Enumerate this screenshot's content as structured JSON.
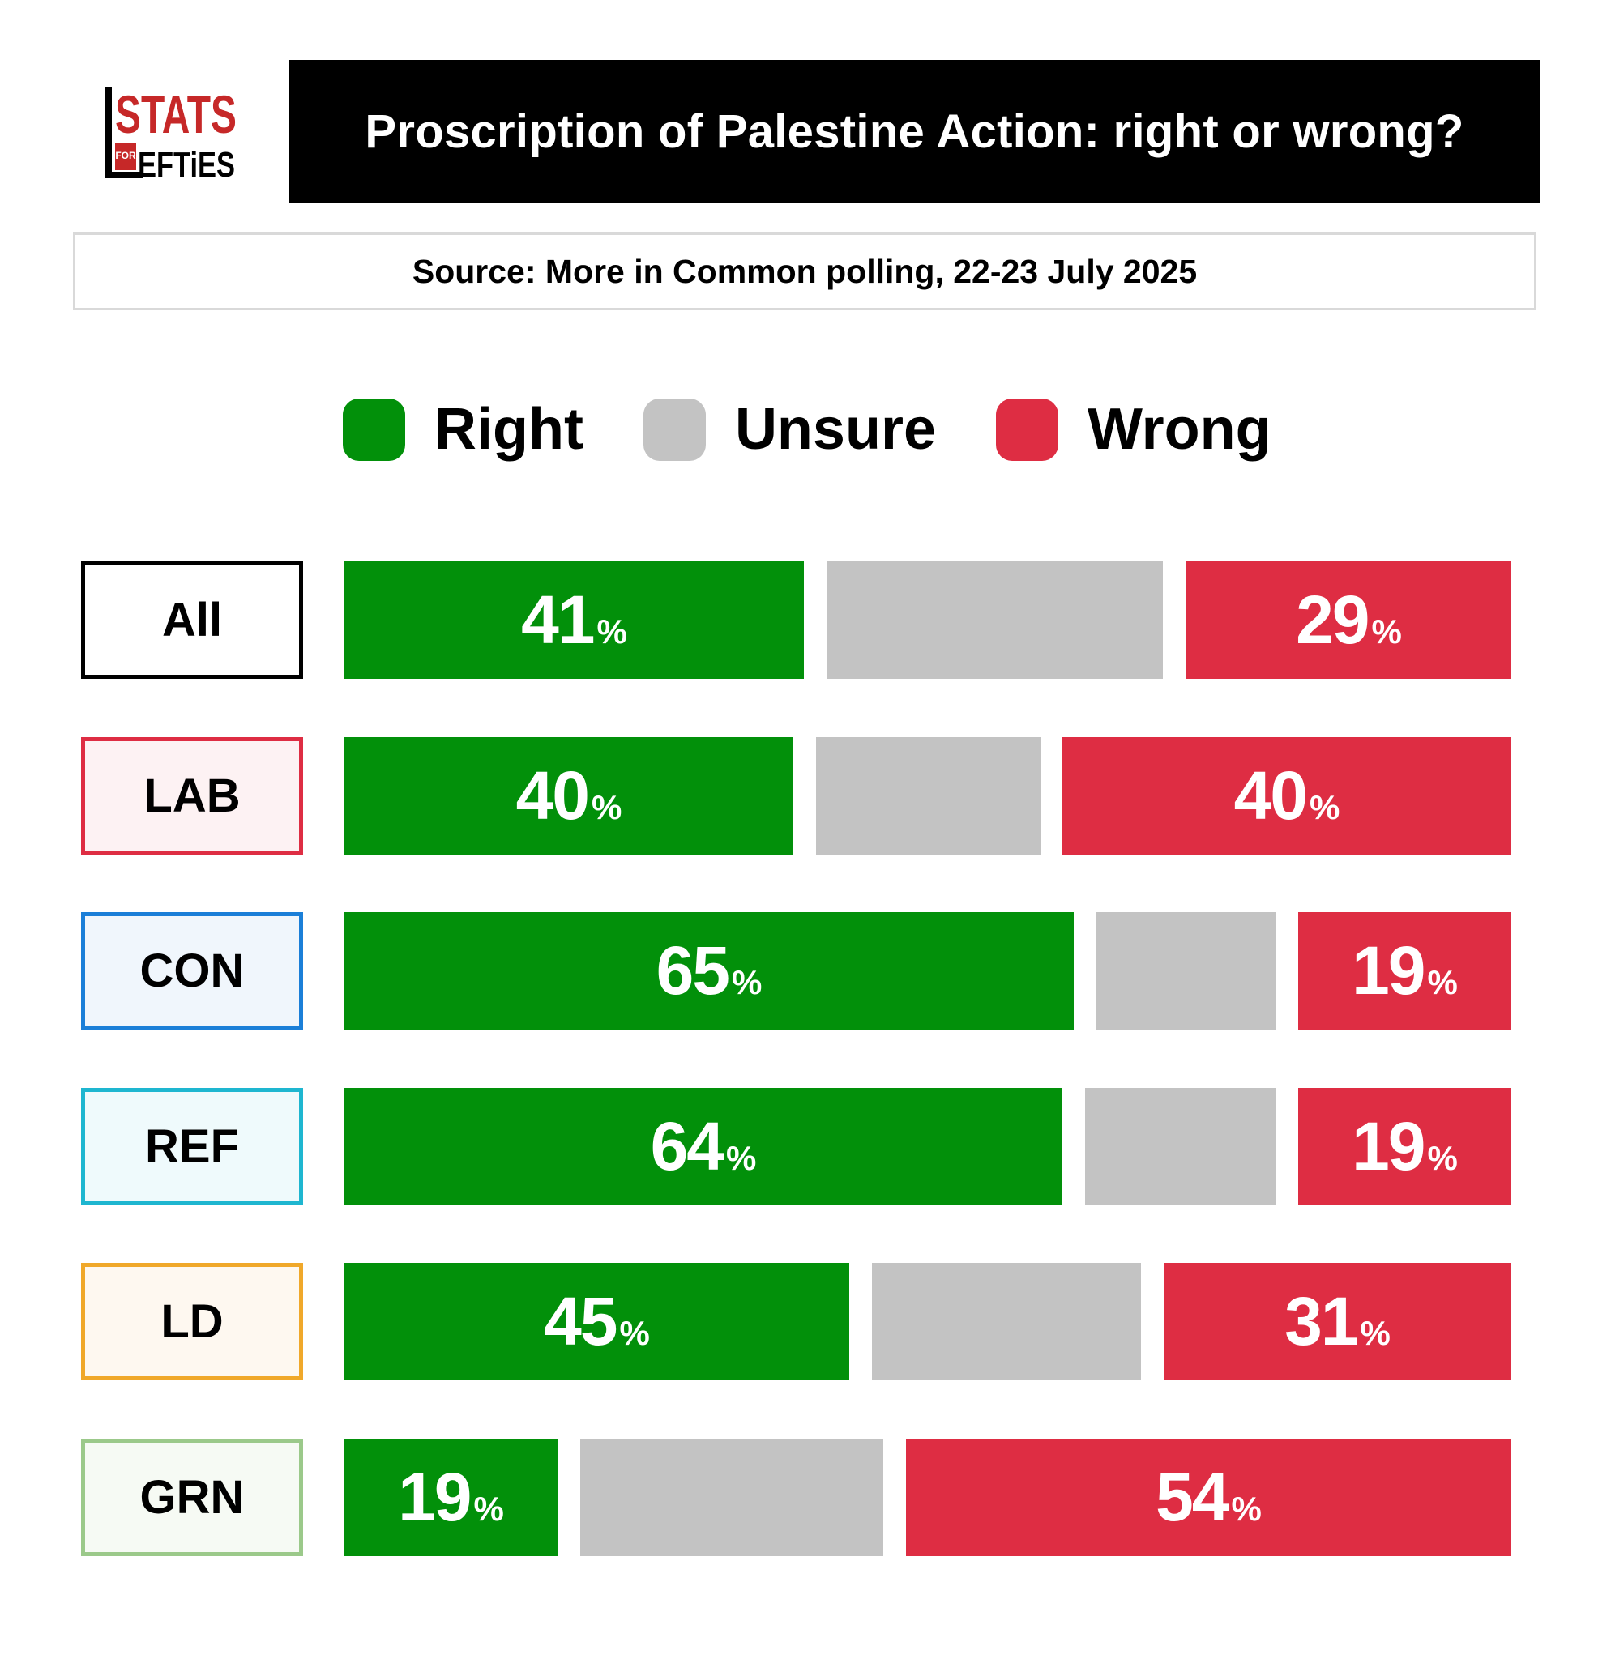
{
  "logo": {
    "text_top": "STATS",
    "text_small": "FOR",
    "text_bottom": "EFTiES",
    "letter": "L"
  },
  "title": "Proscription of Palestine Action: right or wrong?",
  "source": "Source: More in Common polling, 22-23 July 2025",
  "colors": {
    "right": "#02900a",
    "unsure": "#c3c3c3",
    "wrong": "#de2d43"
  },
  "legend": [
    {
      "label": "Right",
      "color": "#02900a"
    },
    {
      "label": "Unsure",
      "color": "#c3c3c3"
    },
    {
      "label": "Wrong",
      "color": "#de2d43"
    }
  ],
  "chart_data": {
    "type": "bar",
    "stacked": true,
    "orientation": "horizontal",
    "categories": [
      "All",
      "LAB",
      "CON",
      "REF",
      "LD",
      "GRN"
    ],
    "series": [
      {
        "name": "Right",
        "values": [
          41,
          40,
          65,
          64,
          45,
          19
        ]
      },
      {
        "name": "Unsure",
        "values": [
          30,
          20,
          16,
          17,
          24,
          27
        ]
      },
      {
        "name": "Wrong",
        "values": [
          29,
          40,
          19,
          19,
          31,
          54
        ]
      }
    ],
    "title": "Proscription of Palestine Action: right or wrong?",
    "unit": "%"
  },
  "rows": [
    {
      "label": "All",
      "border": "#000000",
      "bg": "#ffffff",
      "right": 41,
      "unsure": 30,
      "wrong": 29,
      "right_text": "41",
      "wrong_text": "29",
      "pct": "%"
    },
    {
      "label": "LAB",
      "border": "#de2d43",
      "bg": "#fdf2f3",
      "right": 40,
      "unsure": 20,
      "wrong": 40,
      "right_text": "40",
      "wrong_text": "40",
      "pct": "%"
    },
    {
      "label": "CON",
      "border": "#1b7fd8",
      "bg": "#f0f6fc",
      "right": 65,
      "unsure": 16,
      "wrong": 19,
      "right_text": "65",
      "wrong_text": "19",
      "pct": "%"
    },
    {
      "label": "REF",
      "border": "#1eb6d0",
      "bg": "#effafc",
      "right": 64,
      "unsure": 17,
      "wrong": 19,
      "right_text": "64",
      "wrong_text": "19",
      "pct": "%"
    },
    {
      "label": "LD",
      "border": "#f0a82a",
      "bg": "#fef8f0",
      "right": 45,
      "unsure": 24,
      "wrong": 31,
      "right_text": "45",
      "wrong_text": "31",
      "pct": "%"
    },
    {
      "label": "GRN",
      "border": "#9bc98a",
      "bg": "#f6faf4",
      "right": 19,
      "unsure": 27,
      "wrong": 54,
      "right_text": "19",
      "wrong_text": "54",
      "pct": "%"
    }
  ]
}
